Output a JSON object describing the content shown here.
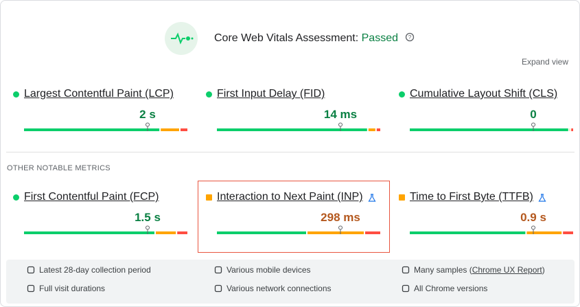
{
  "header": {
    "title": "Core Web Vitals Assessment:",
    "status": "Passed",
    "expand": "Expand view"
  },
  "core_metrics": [
    {
      "name": "Largest Contentful Paint (LCP)",
      "value": "2 s",
      "indicator": "circle",
      "color": "#0cce6b",
      "value_color": "#0a8043",
      "experimental": false,
      "highlighted": false,
      "distribution": [
        83,
        12,
        5
      ],
      "marker": 75
    },
    {
      "name": "First Input Delay (FID)",
      "value": "14 ms",
      "indicator": "circle",
      "color": "#0cce6b",
      "value_color": "#0a8043",
      "experimental": false,
      "highlighted": false,
      "distribution": [
        92,
        5,
        3
      ],
      "marker": 75
    },
    {
      "name": "Cumulative Layout Shift (CLS)",
      "value": "0",
      "indicator": "circle",
      "color": "#0cce6b",
      "value_color": "#0a8043",
      "experimental": false,
      "highlighted": false,
      "distribution": [
        97,
        1,
        2
      ],
      "marker": 75
    }
  ],
  "other_heading": "OTHER NOTABLE METRICS",
  "other_metrics": [
    {
      "name": "First Contentful Paint (FCP)",
      "value": "1.5 s",
      "indicator": "circle",
      "color": "#0cce6b",
      "value_color": "#0a8043",
      "experimental": false,
      "highlighted": false,
      "distribution": [
        80,
        13,
        7
      ],
      "marker": 75
    },
    {
      "name": "Interaction to Next Paint (INP)",
      "value": "298 ms",
      "indicator": "square",
      "color": "#ffa400",
      "value_color": "#b4581e",
      "experimental": true,
      "highlighted": true,
      "distribution": [
        55,
        35,
        10
      ],
      "marker": 75
    },
    {
      "name": "Time to First Byte (TTFB)",
      "value": "0.9 s",
      "indicator": "square",
      "color": "#ffa400",
      "value_color": "#b4581e",
      "experimental": true,
      "highlighted": false,
      "distribution": [
        71,
        22,
        7
      ],
      "marker": 75
    }
  ],
  "segment_colors": [
    "#0cce6b",
    "#ffa400",
    "#ff4e42"
  ],
  "footer": [
    {
      "text": "Latest 28-day collection period"
    },
    {
      "text": "Various mobile devices"
    },
    {
      "text": "Many samples (",
      "link": "Chrome UX Report",
      "suffix": ")"
    },
    {
      "text": "Full visit durations"
    },
    {
      "text": "Various network connections"
    },
    {
      "text": "All Chrome versions"
    }
  ]
}
